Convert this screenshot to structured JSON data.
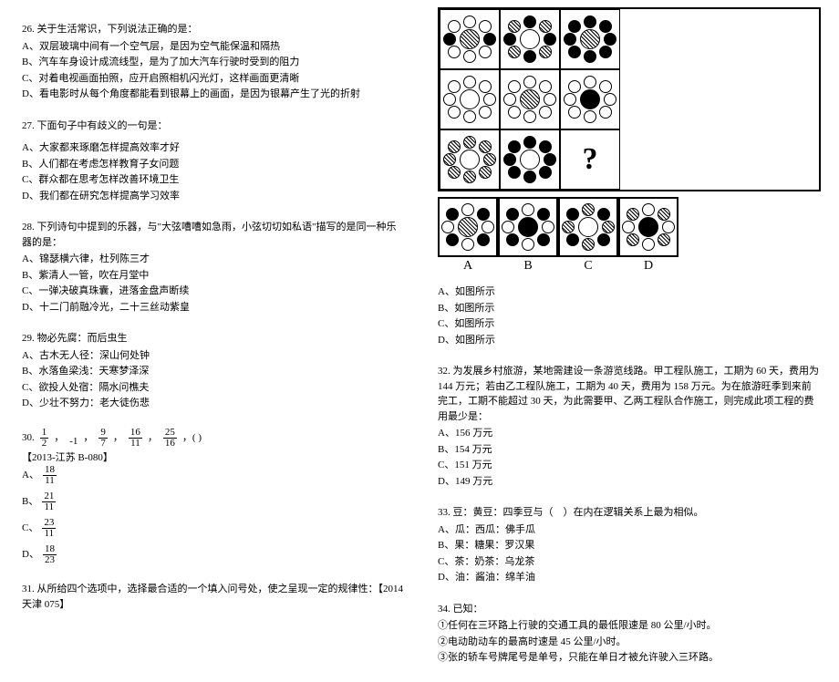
{
  "q26": {
    "stem": "26. 关于生活常识，下列说法正确的是：",
    "opts": [
      "A、双层玻璃中间有一个空气层，是因为空气能保温和隔热",
      "B、汽车车身设计成流线型，是为了加大汽车行驶时受到的阻力",
      "C、对着电视画面拍照，应开启照相机闪光灯，这样画面更清晰",
      "D、看电影时从每个角度都能看到银幕上的画面，是因为银幕产生了光的折射"
    ]
  },
  "q27": {
    "stem": "27. 下面句子中有歧义的一句是：",
    "opts": [
      "A、大家都来琢磨怎样提高效率才好",
      "B、人们都在考虑怎样教育子女问题",
      "C、群众都在思考怎样改善环境卫生",
      "D、我们都在研究怎样提高学习效率"
    ]
  },
  "q28": {
    "stem": "28. 下列诗句中提到的乐器，与\"大弦嘈嘈如急雨，小弦切切如私语\"描写的是同一种乐器的是：",
    "opts": [
      "A、锦瑟横六律，杜列陈三才",
      "B、紫清人一管，吹在月堂中",
      "C、一弹决破真珠囊，进落金盘声断续",
      "D、十二门前融冷光，二十三丝动紫皇"
    ]
  },
  "q29": {
    "stem": "29. 物必先腐：而后虫生",
    "opts": [
      "A、古木无人径：深山何处钟",
      "B、水落鱼梁浅：天寒梦泽深",
      "C、欲投人处宿：隔水问樵夫",
      "D、少壮不努力：老大徒伤悲"
    ]
  },
  "q30": {
    "prefix": "30.",
    "frac": [
      {
        "n": "1",
        "d": "2"
      },
      {
        "n": "9",
        "d": "7"
      },
      {
        "n": "16",
        "d": "11"
      },
      {
        "n": "25",
        "d": "16"
      }
    ],
    "minus1": "-1",
    "sep": "，",
    "tail": "，( )",
    "src": "【2013-江苏 B-080】",
    "optLabels": [
      "A、",
      "B、",
      "C、",
      "D、"
    ],
    "optFrac": [
      {
        "n": "18",
        "d": "11"
      },
      {
        "n": "21",
        "d": "11"
      },
      {
        "n": "23",
        "d": "11"
      },
      {
        "n": "18",
        "d": "23"
      }
    ]
  },
  "q31": {
    "stem": "31. 从所给四个选项中，选择最合适的一个填入问号处，使之呈现一定的规律性：【2014 天津 075】",
    "opts": [
      "A、如图所示",
      "B、如图所示",
      "C、如图所示",
      "D、如图所示"
    ],
    "ansLabels": [
      "A",
      "B",
      "C",
      "D"
    ]
  },
  "q32": {
    "stem": "32. 为发展乡村旅游，某地需建设一条游览线路。甲工程队施工，工期为 60 天，费用为 144 万元；若由乙工程队施工，工期为 40 天，费用为 158 万元。为在旅游旺季到来前完工，工期不能超过 30 天，为此需要甲、乙两工程队合作施工，则完成此项工程的费用最少是：",
    "opts": [
      "A、156 万元",
      "B、154 万元",
      "C、151 万元",
      "D、149 万元"
    ]
  },
  "q33": {
    "stem": "33. 豆：黄豆：四季豆与（　）在内在逻辑关系上最为相似。",
    "opts": [
      "A、瓜：西瓜：佛手瓜",
      "B、果：糖果：罗汉果",
      "C、茶：奶茶：乌龙茶",
      "D、油：酱油：绵羊油"
    ]
  },
  "q34": {
    "stem": "34. 已知：",
    "opts": [
      "①任何在三环路上行驶的交通工具的最低限速是 80 公里/小时。",
      "②电动助动车的最高时速是 45 公里/小时。",
      "③张的轿车号牌尾号是单号，只能在单日才被允许驶入三环路。"
    ]
  },
  "grid": {
    "cells": [
      {
        "center": "hatch",
        "petals": [
          "w",
          "w",
          "s",
          "w",
          "w",
          "w",
          "s",
          "w"
        ]
      },
      {
        "center": "w",
        "petals": [
          "s",
          "h",
          "s",
          "h",
          "s",
          "h",
          "s",
          "h"
        ]
      },
      {
        "center": "hatch",
        "petals": [
          "s",
          "s",
          "s",
          "s",
          "s",
          "s",
          "s",
          "s"
        ]
      },
      {
        "center": "w",
        "petals": [
          "w",
          "w",
          "w",
          "w",
          "w",
          "w",
          "w",
          "w"
        ]
      },
      {
        "center": "hatch",
        "petals": [
          "w",
          "w",
          "w",
          "w",
          "w",
          "w",
          "w",
          "w"
        ]
      },
      {
        "center": "solid",
        "petals": [
          "w",
          "w",
          "w",
          "w",
          "w",
          "w",
          "w",
          "w"
        ]
      },
      {
        "center": "w",
        "petals": [
          "h",
          "h",
          "h",
          "h",
          "h",
          "h",
          "h",
          "h"
        ]
      },
      {
        "center": "w",
        "petals": [
          "s",
          "s",
          "s",
          "s",
          "s",
          "s",
          "s",
          "s"
        ]
      },
      null
    ],
    "answers": [
      {
        "center": "hatch",
        "petals": [
          "w",
          "s",
          "w",
          "s",
          "w",
          "s",
          "w",
          "s"
        ]
      },
      {
        "center": "solid",
        "petals": [
          "w",
          "s",
          "w",
          "s",
          "w",
          "s",
          "w",
          "s"
        ]
      },
      {
        "center": "w",
        "petals": [
          "h",
          "s",
          "h",
          "s",
          "h",
          "s",
          "h",
          "s"
        ]
      },
      {
        "center": "solid",
        "petals": [
          "w",
          "h",
          "w",
          "h",
          "w",
          "h",
          "w",
          "h"
        ]
      }
    ]
  },
  "style": {
    "font_family": "SimSun",
    "font_size_pt": 8,
    "text_color": "#000000",
    "background": "#ffffff"
  }
}
